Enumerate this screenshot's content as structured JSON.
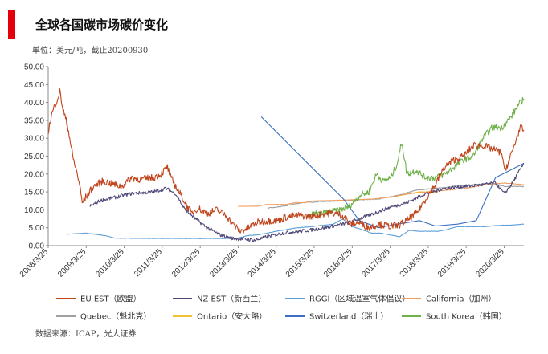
{
  "header": {
    "title": "全球各国碳市场碳价变化",
    "unit_note": "单位：美元/吨，截止20200930",
    "source": "数据来源：ICAP，光大证券"
  },
  "colors": {
    "accent": "#e3000b"
  },
  "chart_data": {
    "type": "line",
    "ylim": [
      0,
      50
    ],
    "y_ticks": [
      "0.00",
      "5.00",
      "10.00",
      "15.00",
      "20.00",
      "25.00",
      "30.00",
      "35.00",
      "40.00",
      "45.00",
      "50.00"
    ],
    "x_ticks": [
      "2008/3/25",
      "2009/3/25",
      "2010/3/25",
      "2011/3/25",
      "2012/3/25",
      "2013/3/25",
      "2014/3/25",
      "2015/3/25",
      "2016/3/25",
      "2017/3/25",
      "2018/3/25",
      "2019/3/25",
      "2020/3/25"
    ],
    "xlim": [
      "2008-03-25",
      "2020-09-30"
    ],
    "legend_position": "bottom",
    "series": [
      {
        "name": "EU EST（欧盟）",
        "color": "#c0441c",
        "width": 1.1,
        "noise": 1.0,
        "points": [
          [
            "2008-03-25",
            32
          ],
          [
            "2008-05-01",
            37
          ],
          [
            "2008-06-20",
            41
          ],
          [
            "2008-07-15",
            43
          ],
          [
            "2008-08-15",
            38
          ],
          [
            "2008-10-01",
            33
          ],
          [
            "2008-11-15",
            25
          ],
          [
            "2009-01-15",
            18
          ],
          [
            "2009-02-15",
            12
          ],
          [
            "2009-04-01",
            14
          ],
          [
            "2009-06-01",
            16.5
          ],
          [
            "2009-09-01",
            18
          ],
          [
            "2010-01-01",
            17
          ],
          [
            "2010-03-01",
            16.5
          ],
          [
            "2010-06-01",
            19
          ],
          [
            "2010-09-01",
            18.5
          ],
          [
            "2011-01-01",
            19
          ],
          [
            "2011-03-15",
            20
          ],
          [
            "2011-05-15",
            22
          ],
          [
            "2011-06-15",
            19
          ],
          [
            "2011-08-15",
            16
          ],
          [
            "2011-11-01",
            12
          ],
          [
            "2012-01-01",
            9
          ],
          [
            "2012-03-01",
            10.5
          ],
          [
            "2012-06-01",
            9
          ],
          [
            "2012-09-01",
            10
          ],
          [
            "2012-12-01",
            8.5
          ],
          [
            "2013-02-01",
            6
          ],
          [
            "2013-04-15",
            4
          ],
          [
            "2013-07-01",
            5
          ],
          [
            "2013-10-01",
            6.5
          ],
          [
            "2014-01-15",
            7
          ],
          [
            "2014-04-01",
            7
          ],
          [
            "2014-07-01",
            8
          ],
          [
            "2014-11-01",
            8.5
          ],
          [
            "2015-03-01",
            8
          ],
          [
            "2015-07-01",
            9
          ],
          [
            "2015-11-01",
            9
          ],
          [
            "2016-01-15",
            8
          ],
          [
            "2016-03-01",
            6
          ],
          [
            "2016-06-01",
            6.5
          ],
          [
            "2016-09-01",
            5
          ],
          [
            "2016-12-01",
            6
          ],
          [
            "2017-03-01",
            5.5
          ],
          [
            "2017-06-01",
            5.5
          ],
          [
            "2017-09-01",
            7
          ],
          [
            "2017-12-01",
            9
          ],
          [
            "2018-03-01",
            13
          ],
          [
            "2018-06-01",
            17
          ],
          [
            "2018-09-01",
            22
          ],
          [
            "2018-12-01",
            24
          ],
          [
            "2019-03-01",
            25
          ],
          [
            "2019-06-01",
            28
          ],
          [
            "2019-09-01",
            28
          ],
          [
            "2019-12-01",
            27
          ],
          [
            "2020-03-01",
            26
          ],
          [
            "2020-03-25",
            21
          ],
          [
            "2020-05-01",
            23
          ],
          [
            "2020-07-01",
            28
          ],
          [
            "2020-08-01",
            31
          ],
          [
            "2020-09-01",
            33
          ],
          [
            "2020-09-30",
            32
          ]
        ]
      },
      {
        "name": "NZ EST（新西兰）",
        "color": "#504878",
        "width": 1.1,
        "noise": 0.5,
        "points": [
          [
            "2009-05-01",
            11
          ],
          [
            "2009-08-01",
            12.5
          ],
          [
            "2010-01-01",
            13.5
          ],
          [
            "2010-06-01",
            14.5
          ],
          [
            "2011-01-01",
            15
          ],
          [
            "2011-05-01",
            16
          ],
          [
            "2011-08-01",
            14.5
          ],
          [
            "2011-11-01",
            10
          ],
          [
            "2012-03-01",
            7
          ],
          [
            "2012-06-01",
            5
          ],
          [
            "2012-10-01",
            3
          ],
          [
            "2013-02-01",
            2
          ],
          [
            "2013-06-01",
            1.8
          ],
          [
            "2013-09-01",
            1.5
          ],
          [
            "2014-01-01",
            2.5
          ],
          [
            "2014-06-01",
            3.5
          ],
          [
            "2014-11-01",
            4
          ],
          [
            "2015-04-01",
            4.5
          ],
          [
            "2015-10-01",
            5.5
          ],
          [
            "2016-03-01",
            6.5
          ],
          [
            "2016-09-01",
            8.5
          ],
          [
            "2017-03-01",
            10.5
          ],
          [
            "2017-09-01",
            12
          ],
          [
            "2018-03-01",
            14.5
          ],
          [
            "2018-09-01",
            16
          ],
          [
            "2019-03-01",
            16.5
          ],
          [
            "2019-09-01",
            17
          ],
          [
            "2020-01-01",
            17.5
          ],
          [
            "2020-03-25",
            14.5
          ],
          [
            "2020-06-01",
            17
          ],
          [
            "2020-09-30",
            23
          ]
        ]
      },
      {
        "name": "RGGI（区域温室气体倡议）",
        "color": "#5da0d8",
        "width": 1.1,
        "noise": 0.05,
        "points": [
          [
            "2008-09-25",
            3.2
          ],
          [
            "2009-03-25",
            3.5
          ],
          [
            "2009-09-25",
            2.8
          ],
          [
            "2009-12-25",
            2.1
          ],
          [
            "2010-12-25",
            2.0
          ],
          [
            "2011-12-25",
            2.0
          ],
          [
            "2012-12-25",
            2.0
          ],
          [
            "2013-03-25",
            2.1
          ],
          [
            "2013-06-25",
            2.8
          ],
          [
            "2013-09-25",
            3.0
          ],
          [
            "2014-03-25",
            4.0
          ],
          [
            "2014-09-25",
            4.9
          ],
          [
            "2015-03-25",
            5.4
          ],
          [
            "2015-09-25",
            6.0
          ],
          [
            "2015-12-25",
            7.5
          ],
          [
            "2016-03-25",
            5.3
          ],
          [
            "2016-06-25",
            4.5
          ],
          [
            "2016-09-25",
            3.5
          ],
          [
            "2016-12-25",
            3.5
          ],
          [
            "2017-03-25",
            3.0
          ],
          [
            "2017-06-25",
            2.5
          ],
          [
            "2017-09-25",
            4.3
          ],
          [
            "2017-12-25",
            4.0
          ],
          [
            "2018-06-25",
            4.0
          ],
          [
            "2018-09-25",
            4.5
          ],
          [
            "2018-12-25",
            5.3
          ],
          [
            "2019-03-25",
            5.3
          ],
          [
            "2019-09-25",
            5.3
          ],
          [
            "2019-12-25",
            5.6
          ],
          [
            "2020-03-25",
            5.7
          ],
          [
            "2020-06-25",
            5.8
          ],
          [
            "2020-09-30",
            6.0
          ]
        ]
      },
      {
        "name": "California（加州）",
        "color": "#f2a060",
        "width": 1.1,
        "noise": 0.05,
        "points": [
          [
            "2013-03-25",
            11
          ],
          [
            "2013-06-25",
            11
          ],
          [
            "2013-09-25",
            11
          ],
          [
            "2013-12-25",
            11.5
          ],
          [
            "2014-03-25",
            11.5
          ],
          [
            "2014-06-25",
            11.5
          ],
          [
            "2014-09-25",
            12
          ],
          [
            "2014-12-25",
            12
          ],
          [
            "2015-03-25",
            12.5
          ],
          [
            "2015-09-25",
            12.6
          ],
          [
            "2015-12-25",
            12.7
          ],
          [
            "2016-03-25",
            12.8
          ],
          [
            "2016-09-25",
            13
          ],
          [
            "2017-03-25",
            13.5
          ],
          [
            "2017-09-25",
            14.5
          ],
          [
            "2018-03-25",
            15
          ],
          [
            "2018-09-25",
            15.5
          ],
          [
            "2019-03-25",
            16
          ],
          [
            "2019-09-25",
            17
          ],
          [
            "2020-03-25",
            17.5
          ],
          [
            "2020-09-30",
            17
          ]
        ]
      },
      {
        "name": "Quebec（魁北克）",
        "color": "#a0a0a0",
        "width": 1.1,
        "noise": 0.1,
        "points": [
          [
            "2014-01-01",
            10.5
          ],
          [
            "2014-06-01",
            11
          ],
          [
            "2014-12-01",
            12
          ],
          [
            "2015-06-01",
            12.3
          ],
          [
            "2015-12-01",
            12.5
          ],
          [
            "2016-06-01",
            12.8
          ],
          [
            "2016-12-01",
            13
          ],
          [
            "2017-06-01",
            14
          ],
          [
            "2017-12-01",
            15.5
          ],
          [
            "2018-06-01",
            16
          ],
          [
            "2018-12-01",
            16.5
          ],
          [
            "2019-06-01",
            17
          ],
          [
            "2019-12-01",
            17.5
          ],
          [
            "2020-03-25",
            16.5
          ],
          [
            "2020-09-30",
            16.5
          ]
        ]
      },
      {
        "name": "Ontario（安大略）",
        "color": "#f0c030",
        "width": 1.2,
        "noise": 0.05,
        "points": [
          [
            "2017-03-25",
            13.5
          ],
          [
            "2017-06-25",
            14
          ],
          [
            "2017-09-25",
            14.5
          ],
          [
            "2017-12-25",
            15
          ],
          [
            "2018-03-25",
            15
          ],
          [
            "2018-06-25",
            15
          ]
        ]
      },
      {
        "name": "Switzerland（瑞士）",
        "color": "#3c6fc4",
        "width": 1.1,
        "noise": 0,
        "points": [
          [
            "2013-11-01",
            36
          ],
          [
            "2016-01-01",
            13
          ],
          [
            "2016-06-01",
            7
          ],
          [
            "2016-12-01",
            5
          ],
          [
            "2017-06-01",
            6
          ],
          [
            "2018-01-01",
            7
          ],
          [
            "2018-06-01",
            5.5
          ],
          [
            "2019-01-01",
            6
          ],
          [
            "2019-07-01",
            7
          ],
          [
            "2020-01-01",
            19
          ],
          [
            "2020-09-30",
            23
          ]
        ]
      },
      {
        "name": "South Korea（韩国）",
        "color": "#6fb04a",
        "width": 1.1,
        "noise": 0.9,
        "points": [
          [
            "2015-01-12",
            8.5
          ],
          [
            "2015-06-01",
            9
          ],
          [
            "2015-12-01",
            10
          ],
          [
            "2016-03-01",
            11
          ],
          [
            "2016-06-01",
            14
          ],
          [
            "2016-09-01",
            15
          ],
          [
            "2016-11-15",
            20
          ],
          [
            "2017-01-15",
            18
          ],
          [
            "2017-04-01",
            19
          ],
          [
            "2017-06-01",
            23
          ],
          [
            "2017-07-15",
            29
          ],
          [
            "2017-09-01",
            20
          ],
          [
            "2017-12-01",
            21
          ],
          [
            "2018-03-01",
            19
          ],
          [
            "2018-06-01",
            19
          ],
          [
            "2018-09-01",
            20
          ],
          [
            "2018-12-01",
            22
          ],
          [
            "2019-03-01",
            24
          ],
          [
            "2019-06-01",
            25
          ],
          [
            "2019-09-01",
            30
          ],
          [
            "2019-12-01",
            33
          ],
          [
            "2020-03-01",
            33
          ],
          [
            "2020-06-01",
            36
          ],
          [
            "2020-08-01",
            39
          ],
          [
            "2020-09-30",
            41
          ]
        ]
      }
    ]
  }
}
